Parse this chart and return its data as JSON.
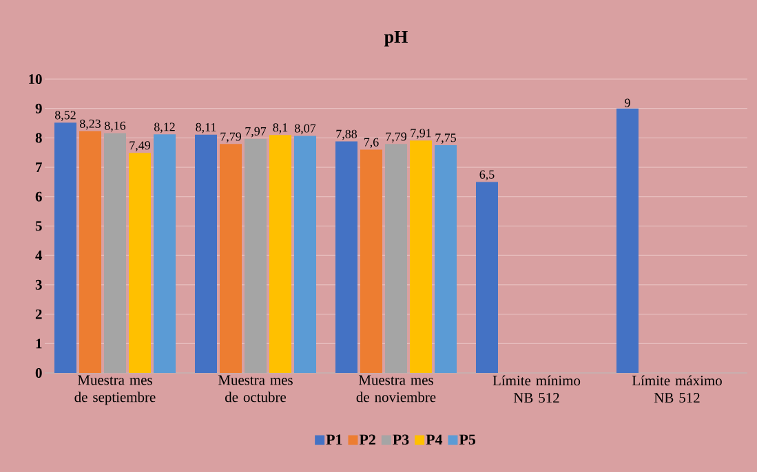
{
  "chart_data": {
    "type": "bar",
    "title": "pH",
    "categories": [
      "Muestra mes de septiembre",
      "Muestra mes de octubre",
      "Muestra mes de noviembre",
      "Límite mínimo NB 512",
      "Límite máximo NB 512"
    ],
    "series": [
      {
        "name": "P1",
        "color": "#4472c4",
        "values": [
          8.52,
          8.11,
          7.88,
          6.5,
          9
        ],
        "value_labels": [
          "8,52",
          "8,11",
          "7,88",
          "6,5",
          "9"
        ]
      },
      {
        "name": "P2",
        "color": "#ed7d31",
        "values": [
          8.23,
          7.79,
          7.6,
          null,
          null
        ],
        "value_labels": [
          "8,23",
          "7,79",
          "7,6",
          null,
          null
        ]
      },
      {
        "name": "P3",
        "color": "#a5a5a5",
        "values": [
          8.16,
          7.97,
          7.79,
          null,
          null
        ],
        "value_labels": [
          "8,16",
          "7,97",
          "7,79",
          null,
          null
        ]
      },
      {
        "name": "P4",
        "color": "#ffc000",
        "values": [
          7.49,
          8.1,
          7.91,
          null,
          null
        ],
        "value_labels": [
          "7,49",
          "8,1",
          "7,91",
          null,
          null
        ]
      },
      {
        "name": "P5",
        "color": "#5b9bd5",
        "values": [
          8.12,
          8.07,
          7.75,
          null,
          null
        ],
        "value_labels": [
          "8,12",
          "8,07",
          "7,75",
          null,
          null
        ]
      }
    ],
    "ylim": [
      0,
      10
    ],
    "yticks": [
      0,
      1,
      2,
      3,
      4,
      5,
      6,
      7,
      8,
      9,
      10
    ],
    "grid": "y",
    "legend": "bottom"
  }
}
